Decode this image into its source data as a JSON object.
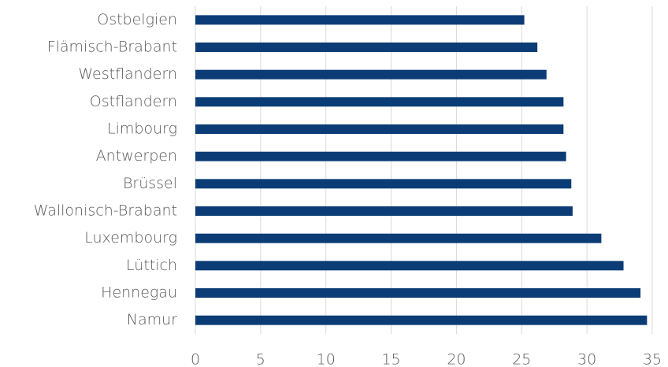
{
  "chart_data": {
    "type": "barh",
    "categories": [
      "Ostbelgien",
      "Flämisch-Brabant",
      "Westflandern",
      "Ostflandern",
      "Limbourg",
      "Antwerpen",
      "Brüssel",
      "Wallonisch-Brabant",
      "Luxembourg",
      "Lüttich",
      "Hennegau",
      "Namur"
    ],
    "values": [
      25.2,
      26.2,
      26.9,
      28.2,
      28.2,
      28.4,
      28.8,
      28.9,
      31.1,
      32.8,
      34.1,
      34.6
    ],
    "color": "#0b3c75",
    "xlim": [
      0,
      35
    ],
    "xticks": [
      0,
      5,
      10,
      15,
      20,
      25,
      30,
      35
    ],
    "grid": true
  }
}
